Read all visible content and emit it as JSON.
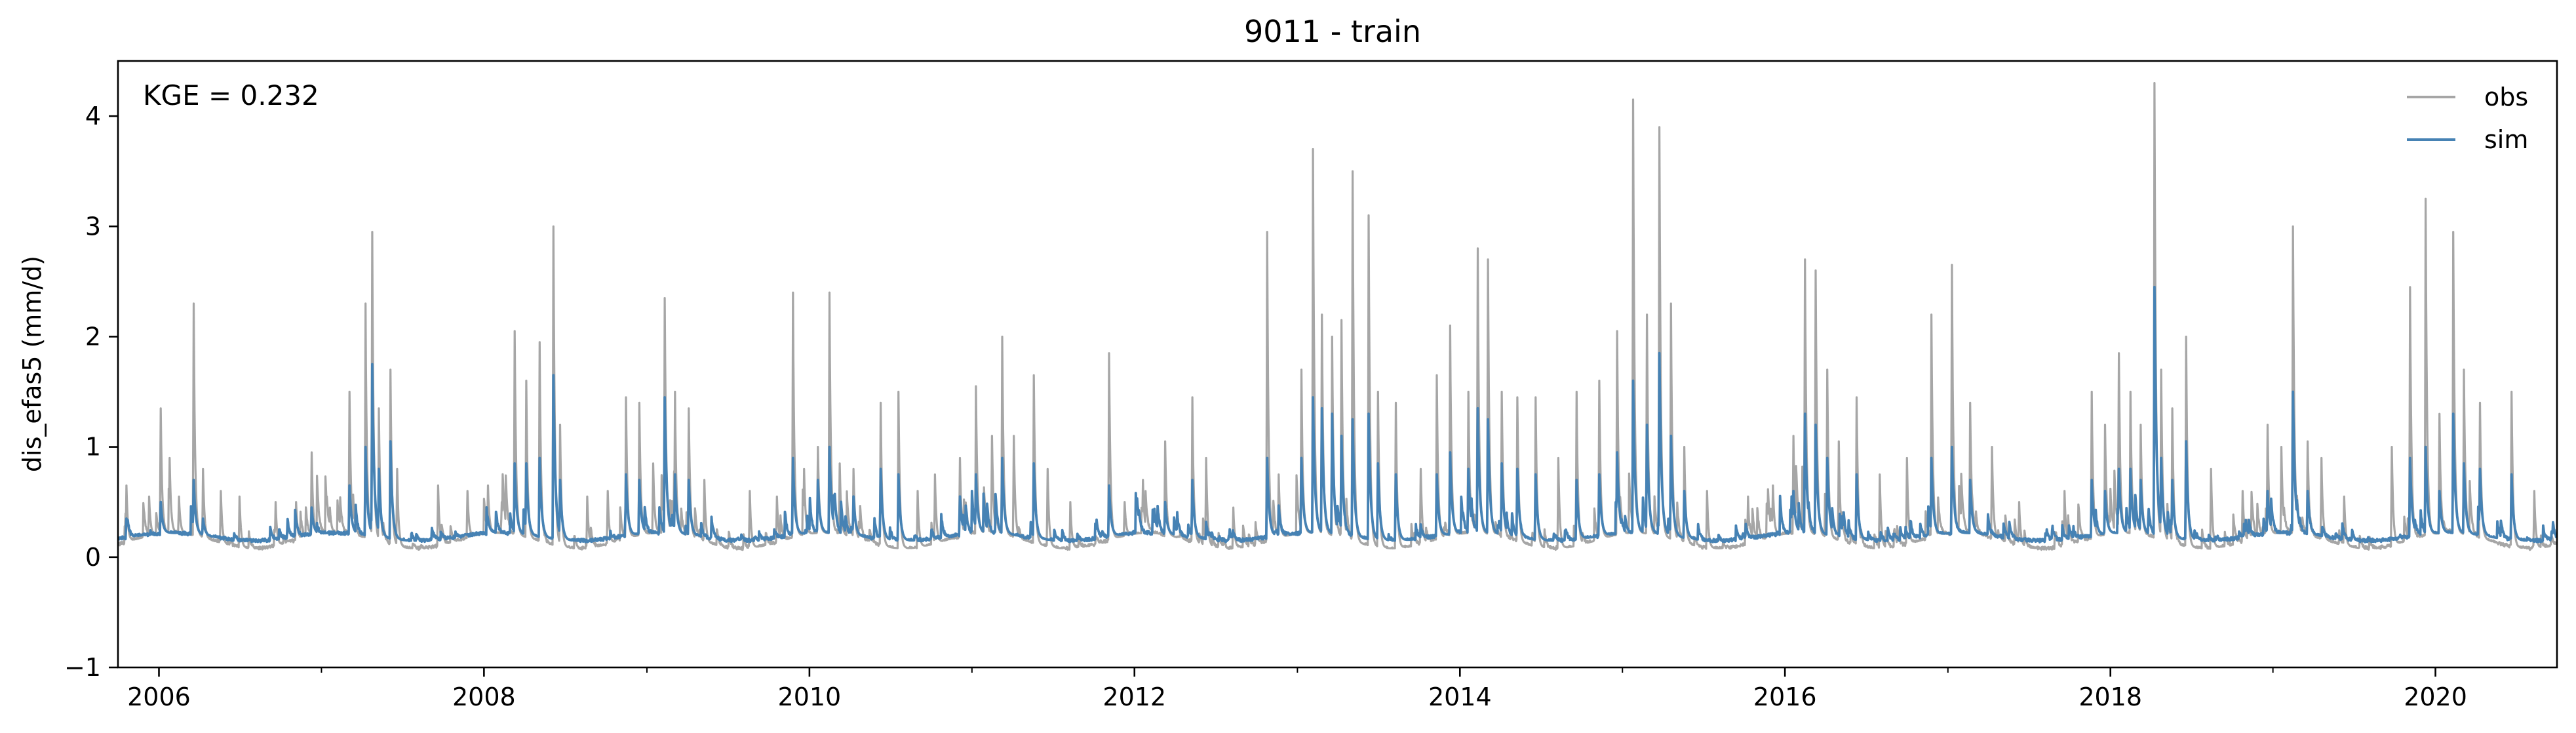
{
  "chart_data": {
    "type": "line",
    "title": "9011 - train",
    "xlabel": "",
    "ylabel": "dis_efas5 (mm/d)",
    "xlim": [
      "2005-10-01",
      "2020-09-30"
    ],
    "ylim": [
      -1,
      4.5
    ],
    "xticks": [
      "2006",
      "2008",
      "2010",
      "2012",
      "2014",
      "2016",
      "2018",
      "2020"
    ],
    "yticks": [
      "−1",
      "0",
      "1",
      "2",
      "3",
      "4"
    ],
    "grid": false,
    "legend": {
      "placement": "top-right",
      "entries": [
        "obs",
        "sim"
      ]
    },
    "annotation": "KGE = 0.232",
    "colors": {
      "obs": "#a6a6a6",
      "sim": "#4682b4"
    },
    "series": [
      {
        "name": "obs",
        "baseline": {
          "summer": 0.08,
          "winter": 0.22
        },
        "peaks": [
          [
            "2005-10-20",
            0.65
          ],
          [
            "2005-12-10",
            0.55
          ],
          [
            "2006-01-05",
            1.35
          ],
          [
            "2006-01-25",
            0.9
          ],
          [
            "2006-02-15",
            0.55
          ],
          [
            "2006-03-20",
            2.3
          ],
          [
            "2006-04-10",
            0.8
          ],
          [
            "2006-05-20",
            0.6
          ],
          [
            "2006-07-01",
            0.55
          ],
          [
            "2006-09-20",
            0.5
          ],
          [
            "2006-11-05",
            0.5
          ],
          [
            "2006-12-10",
            0.95
          ],
          [
            "2007-01-20",
            0.45
          ],
          [
            "2007-03-05",
            1.5
          ],
          [
            "2007-04-10",
            2.3
          ],
          [
            "2007-04-25",
            2.95
          ],
          [
            "2007-05-10",
            1.35
          ],
          [
            "2007-06-05",
            1.7
          ],
          [
            "2007-06-20",
            0.8
          ],
          [
            "2007-09-20",
            0.65
          ],
          [
            "2007-11-25",
            0.6
          ],
          [
            "2008-01-10",
            0.65
          ],
          [
            "2008-02-10",
            0.5
          ],
          [
            "2008-03-10",
            2.05
          ],
          [
            "2008-04-05",
            1.6
          ],
          [
            "2008-05-05",
            1.95
          ],
          [
            "2008-06-05",
            3.0
          ],
          [
            "2008-06-20",
            1.2
          ],
          [
            "2008-08-20",
            0.55
          ],
          [
            "2008-10-05",
            0.6
          ],
          [
            "2008-11-15",
            1.45
          ],
          [
            "2008-12-15",
            1.4
          ],
          [
            "2009-01-15",
            0.85
          ],
          [
            "2009-02-10",
            2.35
          ],
          [
            "2009-03-05",
            1.5
          ],
          [
            "2009-04-05",
            1.35
          ],
          [
            "2009-05-10",
            0.7
          ],
          [
            "2009-08-20",
            0.6
          ],
          [
            "2009-10-20",
            0.55
          ],
          [
            "2009-11-25",
            2.4
          ],
          [
            "2009-12-20",
            0.8
          ],
          [
            "2010-01-20",
            1.0
          ],
          [
            "2010-02-15",
            2.4
          ],
          [
            "2010-03-10",
            0.85
          ],
          [
            "2010-04-10",
            0.8
          ],
          [
            "2010-06-10",
            1.4
          ],
          [
            "2010-07-20",
            1.5
          ],
          [
            "2010-09-01",
            0.6
          ],
          [
            "2010-10-10",
            0.75
          ],
          [
            "2010-12-05",
            0.9
          ],
          [
            "2011-01-10",
            1.55
          ],
          [
            "2011-02-15",
            1.1
          ],
          [
            "2011-03-10",
            2.0
          ],
          [
            "2011-04-05",
            1.1
          ],
          [
            "2011-05-20",
            1.65
          ],
          [
            "2011-06-20",
            0.8
          ],
          [
            "2011-08-10",
            0.5
          ],
          [
            "2011-11-05",
            1.85
          ],
          [
            "2011-12-10",
            0.5
          ],
          [
            "2012-01-20",
            0.7
          ],
          [
            "2012-03-10",
            1.05
          ],
          [
            "2012-05-10",
            1.45
          ],
          [
            "2012-06-10",
            0.9
          ],
          [
            "2012-08-10",
            0.45
          ],
          [
            "2012-10-25",
            2.95
          ],
          [
            "2012-11-20",
            0.75
          ],
          [
            "2013-01-10",
            1.7
          ],
          [
            "2013-02-05",
            3.7
          ],
          [
            "2013-02-25",
            2.2
          ],
          [
            "2013-03-20",
            2.0
          ],
          [
            "2013-04-10",
            2.15
          ],
          [
            "2013-05-05",
            3.5
          ],
          [
            "2013-06-10",
            3.1
          ],
          [
            "2013-07-01",
            1.5
          ],
          [
            "2013-08-10",
            1.4
          ],
          [
            "2013-10-05",
            0.8
          ],
          [
            "2013-11-10",
            1.65
          ],
          [
            "2013-12-10",
            2.1
          ],
          [
            "2014-01-20",
            1.5
          ],
          [
            "2014-02-10",
            2.8
          ],
          [
            "2014-03-05",
            2.7
          ],
          [
            "2014-04-05",
            1.5
          ],
          [
            "2014-05-10",
            1.45
          ],
          [
            "2014-06-20",
            1.45
          ],
          [
            "2014-08-10",
            0.9
          ],
          [
            "2014-09-20",
            1.5
          ],
          [
            "2014-11-10",
            1.6
          ],
          [
            "2014-12-20",
            2.05
          ],
          [
            "2015-01-25",
            4.15
          ],
          [
            "2015-02-25",
            2.2
          ],
          [
            "2015-03-25",
            3.9
          ],
          [
            "2015-04-20",
            2.3
          ],
          [
            "2015-05-20",
            1.0
          ],
          [
            "2015-07-10",
            0.6
          ],
          [
            "2015-10-10",
            0.55
          ],
          [
            "2015-12-05",
            0.65
          ],
          [
            "2016-01-20",
            1.1
          ],
          [
            "2016-02-15",
            2.7
          ],
          [
            "2016-03-10",
            2.6
          ],
          [
            "2016-04-05",
            1.7
          ],
          [
            "2016-05-01",
            1.05
          ],
          [
            "2016-06-10",
            1.45
          ],
          [
            "2016-08-01",
            0.75
          ],
          [
            "2016-10-01",
            0.9
          ],
          [
            "2016-11-25",
            2.2
          ],
          [
            "2017-01-10",
            2.65
          ],
          [
            "2017-02-20",
            1.4
          ],
          [
            "2017-04-10",
            1.0
          ],
          [
            "2017-06-10",
            0.5
          ],
          [
            "2017-09-20",
            0.6
          ],
          [
            "2017-11-20",
            1.5
          ],
          [
            "2017-12-20",
            1.2
          ],
          [
            "2018-01-20",
            1.85
          ],
          [
            "2018-02-15",
            1.5
          ],
          [
            "2018-03-10",
            1.2
          ],
          [
            "2018-04-10",
            4.3
          ],
          [
            "2018-04-25",
            1.7
          ],
          [
            "2018-05-20",
            1.35
          ],
          [
            "2018-06-20",
            2.0
          ],
          [
            "2018-08-15",
            0.8
          ],
          [
            "2018-10-25",
            0.6
          ],
          [
            "2018-12-20",
            1.2
          ],
          [
            "2019-01-20",
            1.0
          ],
          [
            "2019-02-15",
            3.0
          ],
          [
            "2019-03-20",
            1.05
          ],
          [
            "2019-04-20",
            0.9
          ],
          [
            "2019-06-10",
            0.55
          ],
          [
            "2019-09-25",
            1.0
          ],
          [
            "2019-11-05",
            2.45
          ],
          [
            "2019-12-10",
            3.25
          ],
          [
            "2020-01-10",
            1.3
          ],
          [
            "2020-02-10",
            2.95
          ],
          [
            "2020-03-05",
            1.7
          ],
          [
            "2020-04-10",
            1.4
          ],
          [
            "2020-06-20",
            1.5
          ],
          [
            "2020-08-10",
            0.6
          ]
        ]
      },
      {
        "name": "sim",
        "baseline": {
          "summer": 0.15,
          "winter": 0.22
        },
        "peaks": [
          [
            "2005-10-20",
            0.35
          ],
          [
            "2006-01-05",
            0.5
          ],
          [
            "2006-03-20",
            0.7
          ],
          [
            "2006-04-10",
            0.35
          ],
          [
            "2006-12-10",
            0.45
          ],
          [
            "2007-03-05",
            0.65
          ],
          [
            "2007-04-10",
            1.0
          ],
          [
            "2007-04-25",
            1.75
          ],
          [
            "2007-05-10",
            0.8
          ],
          [
            "2007-06-05",
            1.05
          ],
          [
            "2008-01-10",
            0.35
          ],
          [
            "2008-03-10",
            0.85
          ],
          [
            "2008-04-05",
            0.85
          ],
          [
            "2008-05-05",
            0.9
          ],
          [
            "2008-06-05",
            1.65
          ],
          [
            "2008-06-20",
            0.7
          ],
          [
            "2008-11-15",
            0.75
          ],
          [
            "2008-12-15",
            0.7
          ],
          [
            "2009-02-10",
            1.45
          ],
          [
            "2009-03-05",
            0.75
          ],
          [
            "2009-04-05",
            0.7
          ],
          [
            "2009-11-25",
            0.9
          ],
          [
            "2010-01-20",
            0.7
          ],
          [
            "2010-02-15",
            1.0
          ],
          [
            "2010-04-10",
            0.55
          ],
          [
            "2010-06-10",
            0.8
          ],
          [
            "2010-07-20",
            0.75
          ],
          [
            "2010-12-05",
            0.55
          ],
          [
            "2011-01-10",
            0.75
          ],
          [
            "2011-03-10",
            0.9
          ],
          [
            "2011-05-20",
            0.85
          ],
          [
            "2011-11-05",
            0.65
          ],
          [
            "2012-03-10",
            0.5
          ],
          [
            "2012-05-10",
            0.7
          ],
          [
            "2012-10-25",
            0.9
          ],
          [
            "2013-01-10",
            0.9
          ],
          [
            "2013-02-05",
            1.45
          ],
          [
            "2013-02-25",
            1.35
          ],
          [
            "2013-03-20",
            1.3
          ],
          [
            "2013-04-10",
            1.1
          ],
          [
            "2013-05-05",
            1.25
          ],
          [
            "2013-06-10",
            1.3
          ],
          [
            "2013-07-01",
            0.85
          ],
          [
            "2013-08-10",
            0.75
          ],
          [
            "2013-11-10",
            0.75
          ],
          [
            "2013-12-10",
            0.95
          ],
          [
            "2014-01-20",
            0.8
          ],
          [
            "2014-02-10",
            1.35
          ],
          [
            "2014-03-05",
            1.25
          ],
          [
            "2014-04-05",
            0.85
          ],
          [
            "2014-05-10",
            0.8
          ],
          [
            "2014-06-20",
            0.75
          ],
          [
            "2014-09-20",
            0.7
          ],
          [
            "2014-11-10",
            0.75
          ],
          [
            "2014-12-20",
            0.95
          ],
          [
            "2015-01-25",
            1.6
          ],
          [
            "2015-02-25",
            1.2
          ],
          [
            "2015-03-25",
            1.85
          ],
          [
            "2015-04-20",
            1.1
          ],
          [
            "2015-05-20",
            0.6
          ],
          [
            "2016-01-20",
            0.6
          ],
          [
            "2016-02-15",
            1.3
          ],
          [
            "2016-03-10",
            1.2
          ],
          [
            "2016-04-05",
            0.9
          ],
          [
            "2016-06-10",
            0.75
          ],
          [
            "2016-11-25",
            0.9
          ],
          [
            "2017-01-10",
            1.0
          ],
          [
            "2017-02-20",
            0.7
          ],
          [
            "2017-11-20",
            0.7
          ],
          [
            "2017-12-20",
            0.6
          ],
          [
            "2018-01-20",
            0.8
          ],
          [
            "2018-02-15",
            0.8
          ],
          [
            "2018-03-10",
            0.7
          ],
          [
            "2018-04-10",
            2.45
          ],
          [
            "2018-04-25",
            0.9
          ],
          [
            "2018-05-20",
            0.7
          ],
          [
            "2018-06-20",
            1.05
          ],
          [
            "2018-12-20",
            0.6
          ],
          [
            "2019-02-15",
            1.5
          ],
          [
            "2019-03-20",
            0.6
          ],
          [
            "2019-11-05",
            0.9
          ],
          [
            "2019-12-10",
            1.0
          ],
          [
            "2020-01-10",
            0.6
          ],
          [
            "2020-02-10",
            1.3
          ],
          [
            "2020-03-05",
            0.85
          ],
          [
            "2020-04-10",
            0.8
          ],
          [
            "2020-06-20",
            0.75
          ]
        ]
      }
    ]
  }
}
